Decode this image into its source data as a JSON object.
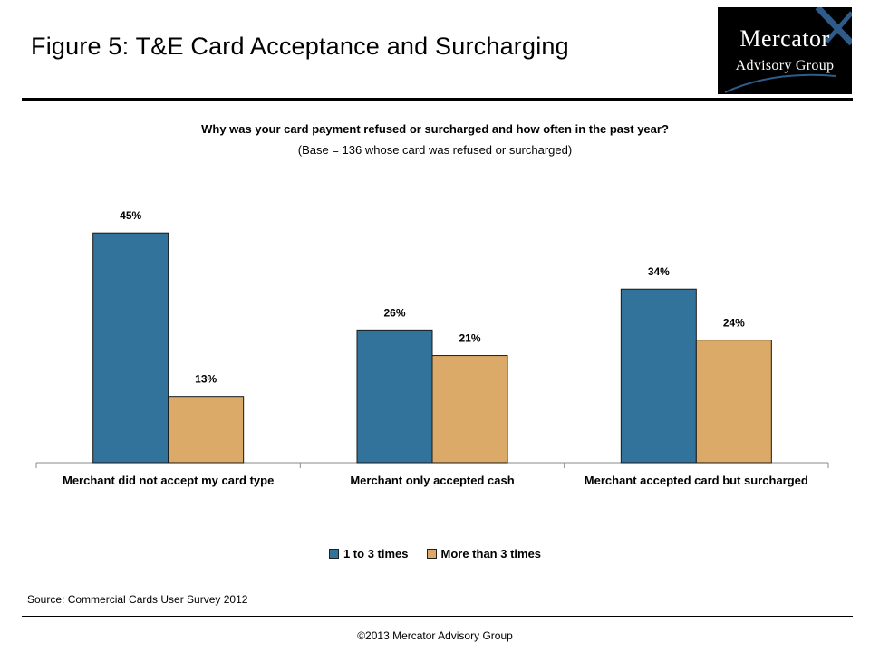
{
  "header": {
    "title": "Figure 5: T&E Card Acceptance and Surcharging",
    "logo_line1": "Mercator",
    "logo_line2": "Advisory Group"
  },
  "chart_data": {
    "type": "bar",
    "title": "Why was your card payment refused or surcharged and how often in the past year?",
    "subtitle": "(Base = 136 whose card was refused or surcharged)",
    "categories": [
      "Merchant did not accept my card type",
      "Merchant only accepted cash",
      "Merchant accepted card but surcharged"
    ],
    "series": [
      {
        "name": "1 to 3 times",
        "values": [
          45,
          26,
          34
        ],
        "labels": [
          "45%",
          "26%",
          "34%"
        ],
        "color": "#31739A"
      },
      {
        "name": "More than 3 times",
        "values": [
          13,
          21,
          24
        ],
        "labels": [
          "13%",
          "21%",
          "24%"
        ],
        "color": "#DBA968"
      }
    ],
    "unit": "%",
    "ylim": [
      0,
      50
    ],
    "grid": false,
    "legend_position": "bottom"
  },
  "footer": {
    "source": "Source: Commercial Cards User Survey 2012",
    "copyright": "©2013 Mercator Advisory Group"
  },
  "colors": {
    "series1": "#31739A",
    "series2": "#DBA968",
    "logo_background": "#000000",
    "logo_accent": "#2E5C8A"
  }
}
